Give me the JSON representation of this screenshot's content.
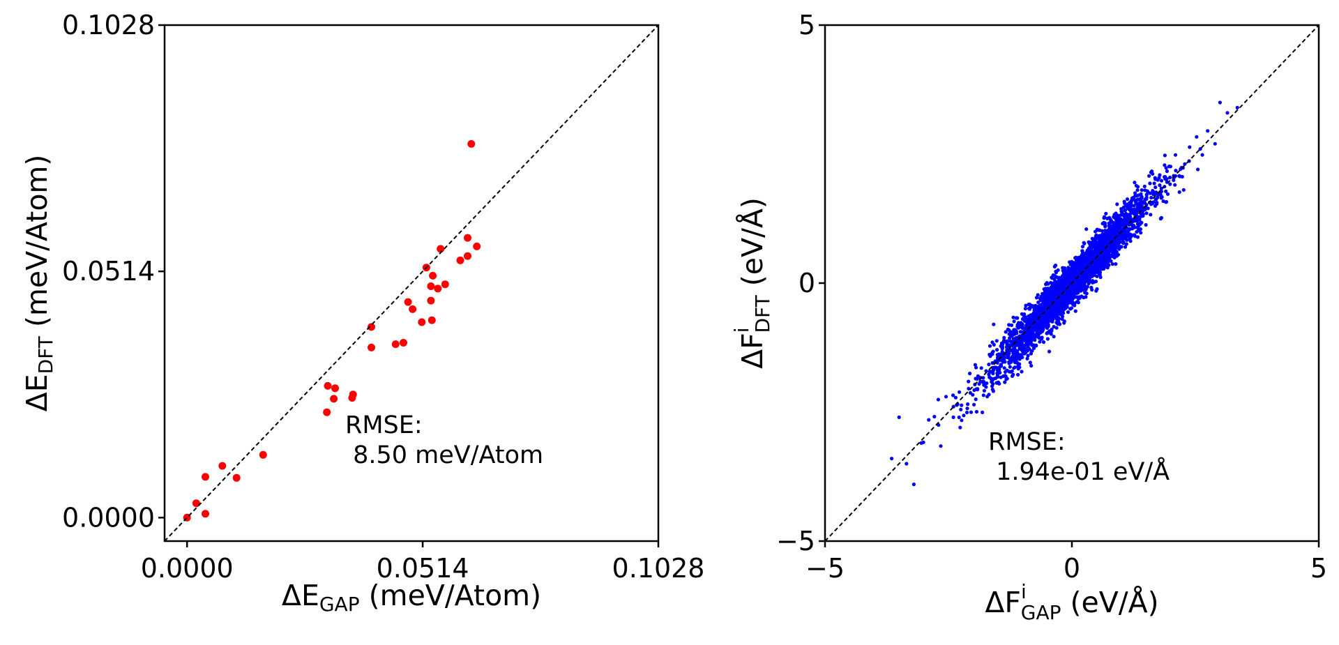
{
  "chart_data": [
    {
      "type": "scatter",
      "xlabel": {
        "main": "ΔE",
        "sub": "GAP",
        "unit": " (meV/Atom)"
      },
      "ylabel": {
        "main": "ΔE",
        "sub": "DFT",
        "unit": " (meV/Atom)"
      },
      "xlim": [
        -0.0049,
        0.1028
      ],
      "ylim": [
        -0.0049,
        0.1028
      ],
      "xticks": [
        "0.0000",
        "0.0514",
        "0.1028"
      ],
      "yticks": [
        "0.0000",
        "0.0514",
        "0.1028"
      ],
      "grid": false,
      "reference_line": "y = x (dashed)",
      "annotation": {
        "line1": "RMSE:",
        "line2": " 8.50 meV/Atom"
      },
      "series": [
        {
          "color": "#ff0000",
          "marker": "circle",
          "points": [
            [
              0.0,
              0.0
            ],
            [
              0.002,
              0.003
            ],
            [
              0.004,
              0.0008
            ],
            [
              0.004,
              0.0085
            ],
            [
              0.0077,
              0.0108
            ],
            [
              0.0108,
              0.0083
            ],
            [
              0.0166,
              0.0131
            ],
            [
              0.0305,
              0.022
            ],
            [
              0.0307,
              0.0275
            ],
            [
              0.032,
              0.0248
            ],
            [
              0.0323,
              0.027
            ],
            [
              0.036,
              0.025
            ],
            [
              0.0362,
              0.0257
            ],
            [
              0.0402,
              0.0355
            ],
            [
              0.0402,
              0.0398
            ],
            [
              0.0455,
              0.0362
            ],
            [
              0.0472,
              0.0365
            ],
            [
              0.0482,
              0.045
            ],
            [
              0.0492,
              0.0435
            ],
            [
              0.0512,
              0.0408
            ],
            [
              0.0522,
              0.0522
            ],
            [
              0.0532,
              0.0483
            ],
            [
              0.0532,
              0.0453
            ],
            [
              0.0534,
              0.0412
            ],
            [
              0.0536,
              0.0505
            ],
            [
              0.0547,
              0.0478
            ],
            [
              0.0553,
              0.0561
            ],
            [
              0.0563,
              0.0487
            ],
            [
              0.0596,
              0.0537
            ],
            [
              0.0612,
              0.0546
            ],
            [
              0.0612,
              0.0584
            ],
            [
              0.062,
              0.078
            ],
            [
              0.0632,
              0.0566
            ]
          ]
        }
      ]
    },
    {
      "type": "scatter",
      "xlabel": {
        "main": "ΔF",
        "sup": "i",
        "sub": "GAP",
        "unit": " (eV/Å)"
      },
      "ylabel": {
        "main": "ΔF",
        "sup": "i",
        "sub": "DFT",
        "unit": " (eV/Å)"
      },
      "xlim": [
        -5,
        5
      ],
      "ylim": [
        -5,
        5
      ],
      "xticks": [
        "−5",
        "0",
        "5"
      ],
      "yticks": [
        "−5",
        "0",
        "5"
      ],
      "grid": false,
      "reference_line": "y = x (dashed)",
      "annotation": {
        "line1": "RMSE:",
        "line2": " 1.94e-01 eV/Å"
      },
      "series": [
        {
          "color": "#0000ff",
          "marker": "circle",
          "count_description": "dense cloud of about 3000 force components along the diagonal, x from about -3.9 to 3.4",
          "points": [
            [
              -3.65,
              -3.4
            ],
            [
              -3.5,
              -2.6
            ],
            [
              -3.35,
              -3.5
            ],
            [
              -3.2,
              -3.9
            ],
            [
              -3.05,
              -3.1
            ],
            [
              -2.9,
              -2.65
            ],
            [
              -2.7,
              -2.75
            ],
            [
              -2.55,
              -2.2
            ],
            [
              -2.4,
              -2.6
            ],
            [
              -2.25,
              -2.45
            ],
            [
              2.6,
              2.6
            ],
            [
              2.75,
              2.95
            ],
            [
              2.9,
              2.7
            ],
            [
              3.0,
              3.5
            ],
            [
              3.15,
              3.3
            ],
            [
              3.35,
              3.4
            ]
          ]
        }
      ]
    }
  ]
}
